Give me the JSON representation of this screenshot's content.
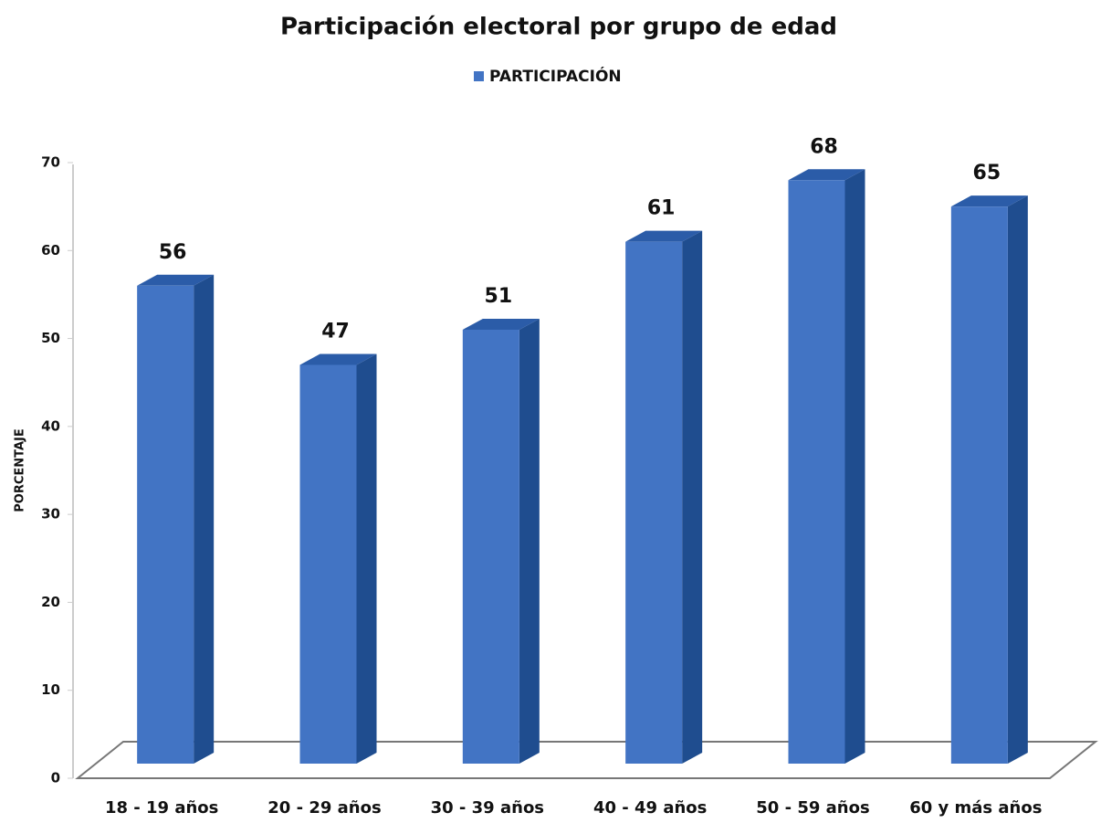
{
  "chart_data": {
    "type": "bar3d",
    "title": "Participación electoral por grupo de edad",
    "legend": "PARTICIPACIÓN",
    "y_label": "PORCENTAJE",
    "categories": [
      "18 - 19 años",
      "20 - 29 años",
      "30 - 39 años",
      "40 - 49 años",
      "50 - 59 años",
      "60 y más años"
    ],
    "values": [
      56,
      47,
      51,
      61,
      68,
      65
    ],
    "color": "#4274c4",
    "ylim": [
      0,
      70
    ],
    "yticks": [
      0,
      10,
      20,
      30,
      40,
      50,
      60,
      70
    ],
    "grid": false
  }
}
